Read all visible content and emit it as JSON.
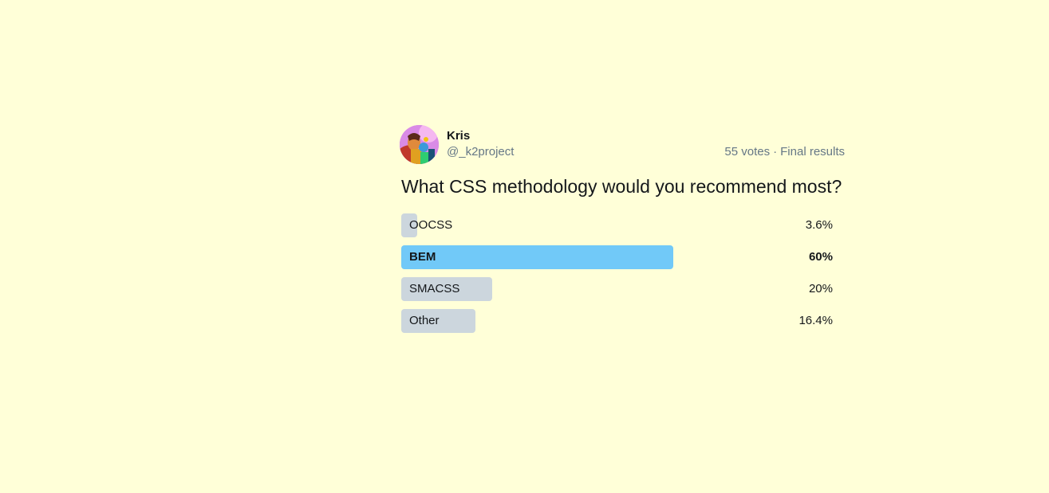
{
  "author": {
    "name": "Kris",
    "handle": "@_k2project"
  },
  "meta": {
    "votes": "55 votes",
    "separator": "·",
    "status": "Final results"
  },
  "question": "What CSS methodology would you recommend most?",
  "options": [
    {
      "label": "OOCSS",
      "percent_text": "3.6%",
      "percent": 3.6,
      "winner": false
    },
    {
      "label": "BEM",
      "percent_text": "60%",
      "percent": 60,
      "winner": true
    },
    {
      "label": "SMACSS",
      "percent_text": "20%",
      "percent": 20,
      "winner": false
    },
    {
      "label": "Other",
      "percent_text": "16.4%",
      "percent": 16.4,
      "winner": false
    }
  ],
  "colors": {
    "background": "#ffffd8",
    "winner_bar": "#71c9f8",
    "default_bar": "#ccd6dd",
    "secondary_text": "#657786"
  }
}
